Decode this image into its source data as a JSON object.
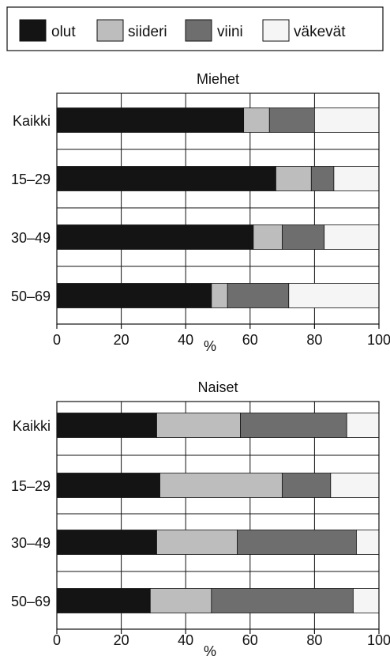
{
  "legend": {
    "items": [
      {
        "label": "olut",
        "color": "#141414"
      },
      {
        "label": "siideri",
        "color": "#bdbdbd"
      },
      {
        "label": "viini",
        "color": "#6e6e6e"
      },
      {
        "label": "väkevät",
        "color": "#f4f5f4"
      }
    ]
  },
  "chart_data": [
    {
      "type": "bar",
      "orientation": "horizontal",
      "stacked": true,
      "title": "Miehet",
      "xlabel": "%",
      "xlim": [
        0,
        100
      ],
      "xticks": [
        "0",
        "20",
        "40",
        "60",
        "80",
        "100"
      ],
      "grid": true,
      "categories": [
        "Kaikki",
        "15–29",
        "30–49",
        "50–69"
      ],
      "series": [
        {
          "name": "olut",
          "values": [
            58,
            68,
            61,
            48
          ]
        },
        {
          "name": "siideri",
          "values": [
            8,
            11,
            9,
            5
          ]
        },
        {
          "name": "viini",
          "values": [
            14,
            7,
            13,
            19
          ]
        },
        {
          "name": "väkevät",
          "values": [
            20,
            14,
            17,
            28
          ]
        }
      ]
    },
    {
      "type": "bar",
      "orientation": "horizontal",
      "stacked": true,
      "title": "Naiset",
      "xlabel": "%",
      "xlim": [
        0,
        100
      ],
      "xticks": [
        "0",
        "20",
        "40",
        "60",
        "80",
        "100"
      ],
      "grid": true,
      "categories": [
        "Kaikki",
        "15–29",
        "30–49",
        "50–69"
      ],
      "series": [
        {
          "name": "olut",
          "values": [
            31,
            32,
            31,
            29
          ]
        },
        {
          "name": "siideri",
          "values": [
            26,
            38,
            25,
            19
          ]
        },
        {
          "name": "viini",
          "values": [
            33,
            15,
            37,
            44
          ]
        },
        {
          "name": "väkevät",
          "values": [
            10,
            15,
            7,
            8
          ]
        }
      ]
    }
  ]
}
